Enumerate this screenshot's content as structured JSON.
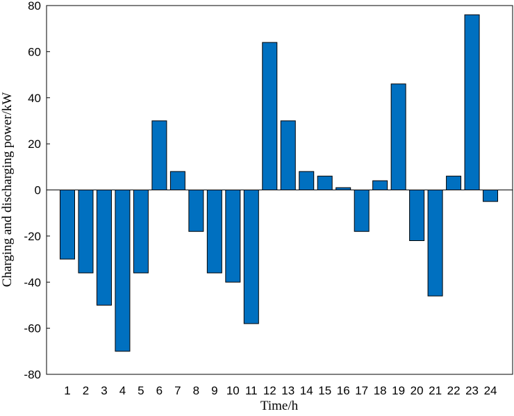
{
  "chart_data": {
    "type": "bar",
    "xlabel": "Time/h",
    "ylabel": "Charging and discharging power/kW",
    "categories": [
      "1",
      "2",
      "3",
      "4",
      "5",
      "6",
      "7",
      "8",
      "9",
      "10",
      "11",
      "12",
      "13",
      "14",
      "15",
      "16",
      "17",
      "18",
      "19",
      "20",
      "21",
      "22",
      "23",
      "24"
    ],
    "values": [
      -30,
      -36,
      -50,
      -70,
      -36,
      30,
      8,
      -18,
      -36,
      -40,
      -58,
      64,
      30,
      8,
      6,
      1,
      -18,
      4,
      46,
      -22,
      -46,
      6,
      76,
      -5
    ],
    "color": "#0070c0",
    "ylim": [
      -80,
      80
    ],
    "yticks": [
      -80,
      -60,
      -40,
      -20,
      0,
      20,
      40,
      60,
      80
    ]
  }
}
